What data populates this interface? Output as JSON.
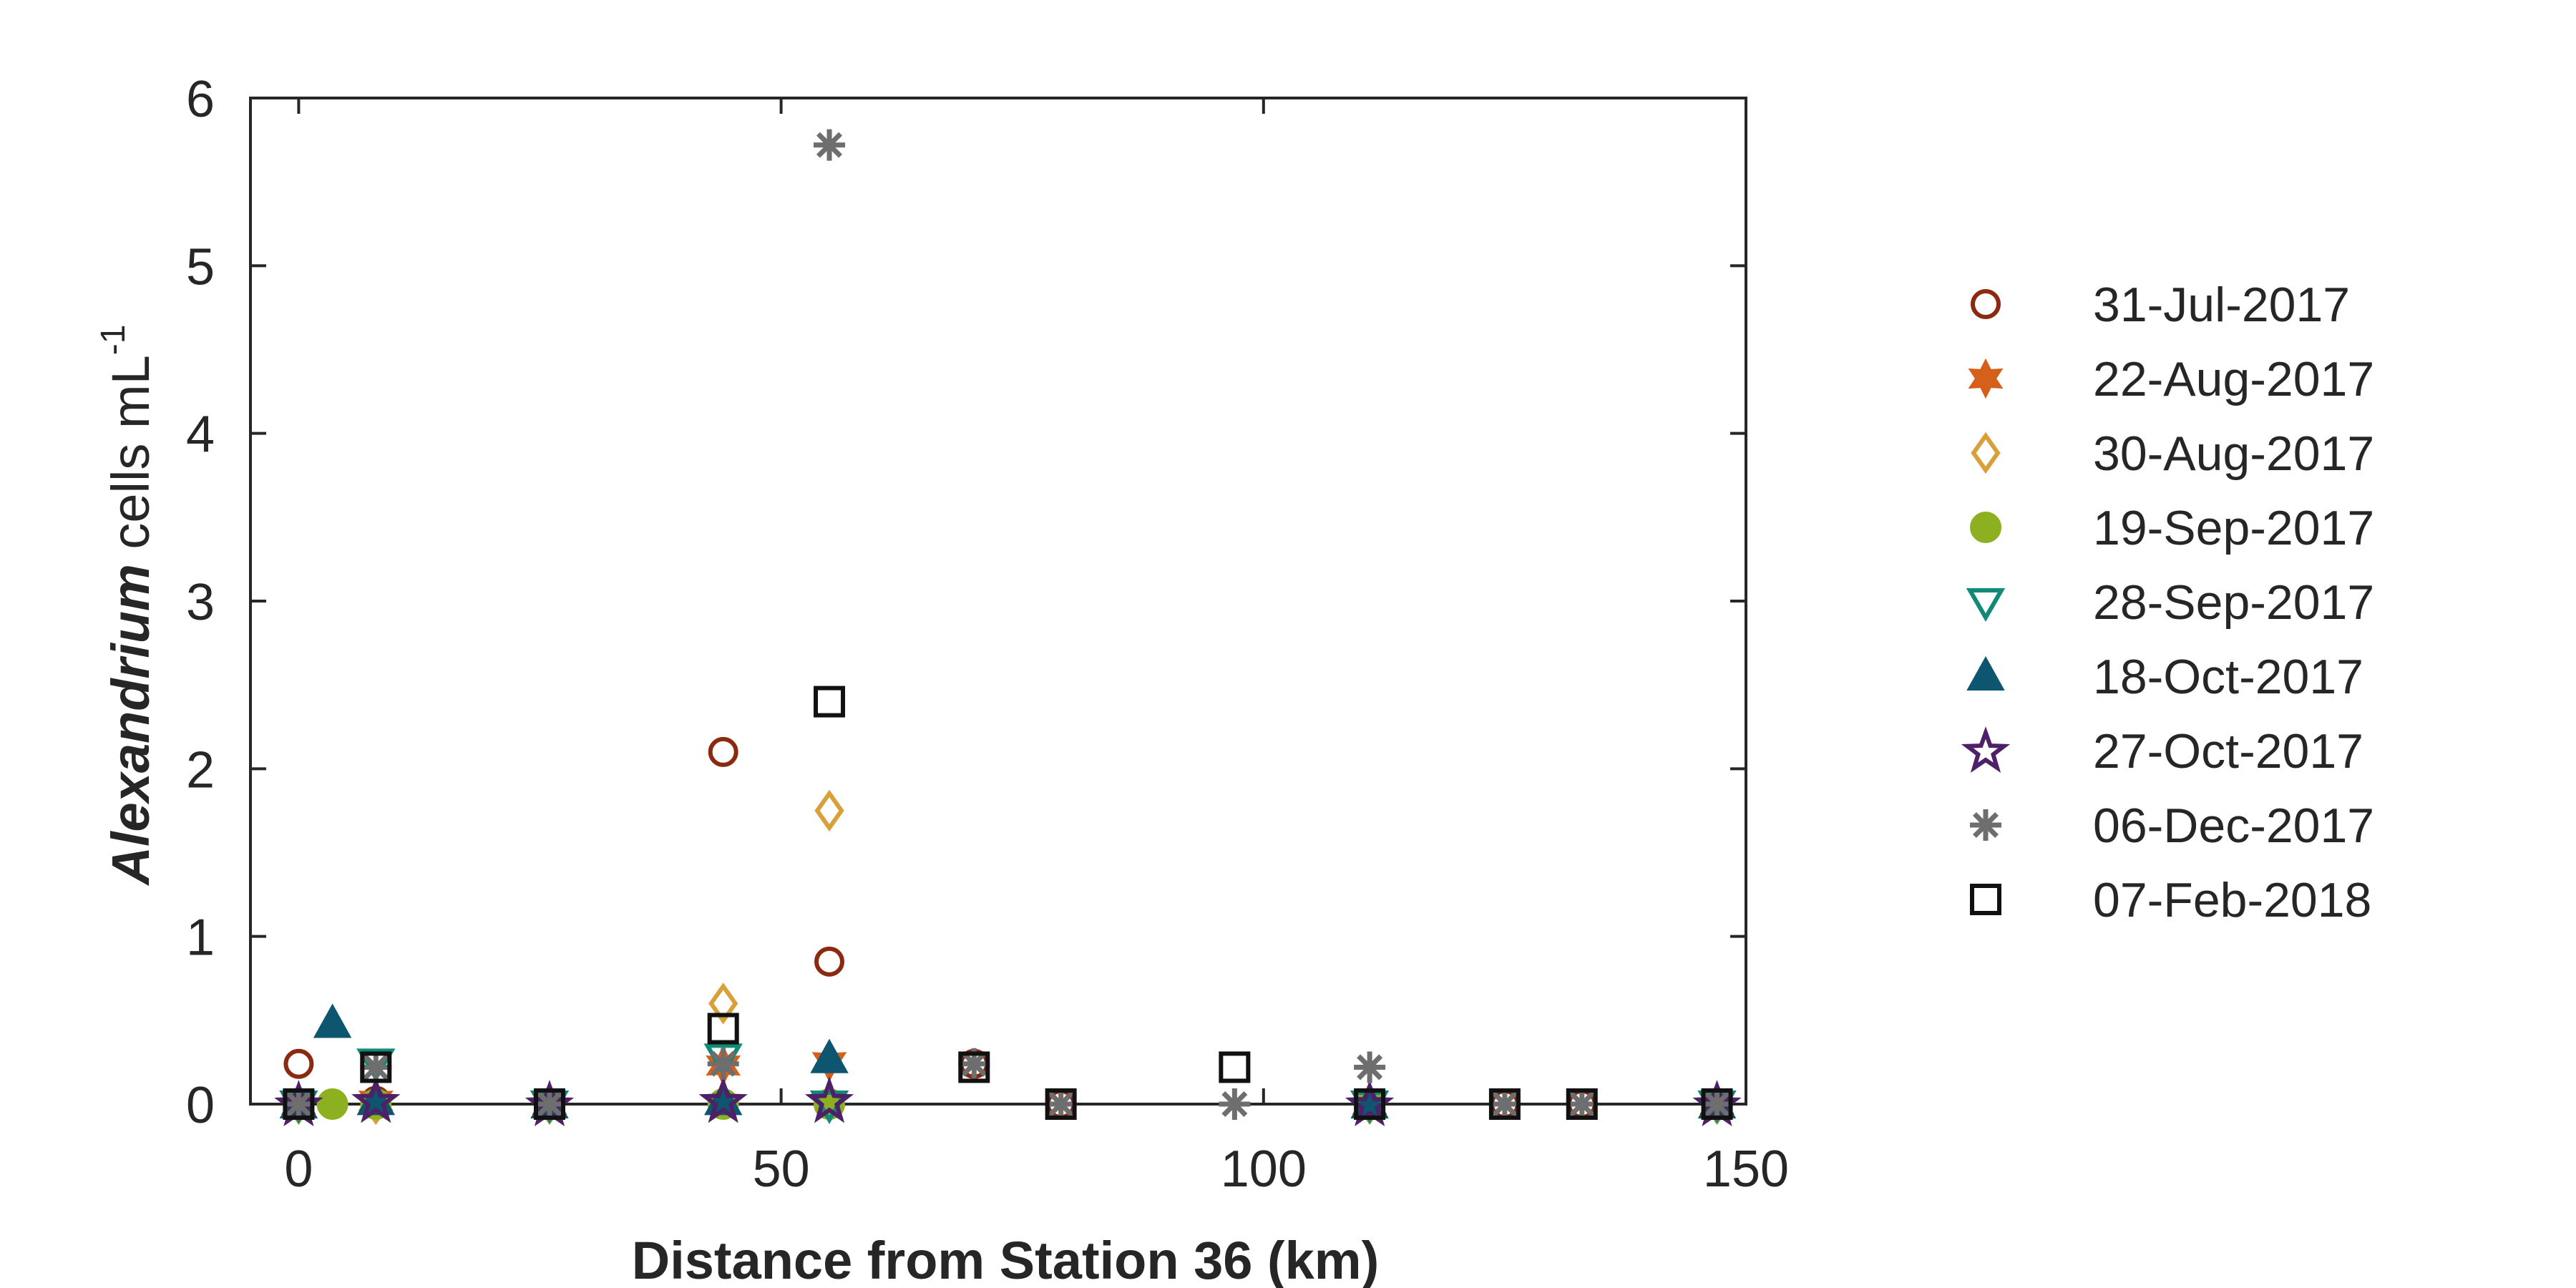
{
  "chart_data": {
    "type": "scatter",
    "xlabel": "Distance from Station 36 (km)",
    "ylabel": {
      "italic_part": "Alexandrium",
      "plain_part": " cells mL",
      "superscript": "-1"
    },
    "xlim": [
      -5,
      150
    ],
    "ylim": [
      0,
      6
    ],
    "x_ticks": [
      0,
      50,
      100,
      150
    ],
    "y_ticks": [
      0,
      1,
      2,
      3,
      4,
      5,
      6
    ],
    "grid": false,
    "legend_position": "right",
    "series": [
      {
        "name": "31-Jul-2017",
        "marker": "circle-open",
        "color": "#8B2A10",
        "x": [
          0,
          44,
          55,
          8,
          26,
          70,
          79,
          111,
          125,
          133,
          147
        ],
        "y": [
          0.24,
          2.1,
          0.85,
          0.02,
          0,
          0.24,
          0,
          0,
          0,
          0,
          0
        ]
      },
      {
        "name": "22-Aug-2017",
        "marker": "hexagram-filled",
        "color": "#D5601A",
        "x": [
          0,
          8,
          26,
          44,
          55,
          111,
          147
        ],
        "y": [
          0,
          0.02,
          0,
          0.23,
          0.25,
          0,
          0
        ]
      },
      {
        "name": "30-Aug-2017",
        "marker": "diamond-open",
        "color": "#D9A03A",
        "x": [
          0,
          8,
          26,
          44,
          55,
          111,
          147
        ],
        "y": [
          0,
          0,
          0,
          0.6,
          1.75,
          0,
          0
        ]
      },
      {
        "name": "19-Sep-2017",
        "marker": "circle-filled",
        "color": "#8DB020",
        "x": [
          0,
          3.5,
          8,
          26,
          44,
          55,
          111,
          147
        ],
        "y": [
          0,
          0,
          0,
          0,
          0,
          0,
          0,
          0
        ]
      },
      {
        "name": "28-Sep-2017",
        "marker": "triangle-down-open",
        "color": "#128A78",
        "x": [
          0,
          8,
          26,
          44,
          55,
          111,
          147
        ],
        "y": [
          0,
          0.25,
          0,
          0.28,
          0,
          0,
          0
        ]
      },
      {
        "name": "18-Oct-2017",
        "marker": "triangle-up-filled",
        "color": "#0E5570",
        "x": [
          0,
          3.5,
          8,
          26,
          44,
          55,
          111,
          147
        ],
        "y": [
          0,
          0.48,
          0.02,
          0,
          0.02,
          0.27,
          0,
          0
        ]
      },
      {
        "name": "27-Oct-2017",
        "marker": "pentagram-open",
        "color": "#4E2068",
        "x": [
          0,
          8,
          26,
          44,
          55,
          111,
          147
        ],
        "y": [
          0,
          0.02,
          0,
          0.02,
          0.02,
          0,
          0
        ]
      },
      {
        "name": "06-Dec-2017",
        "marker": "asterisk",
        "color": "#6E6E6E",
        "x": [
          0,
          8,
          26,
          44,
          55,
          70,
          79,
          97,
          111,
          125,
          133,
          147
        ],
        "y": [
          0,
          0.22,
          0,
          0.24,
          5.72,
          0.24,
          0,
          0,
          0.22,
          0,
          0,
          0
        ]
      },
      {
        "name": "07-Feb-2018",
        "marker": "square-open",
        "color": "#111111",
        "x": [
          0,
          8,
          26,
          44,
          55,
          70,
          79,
          97,
          111,
          125,
          133,
          147
        ],
        "y": [
          0,
          0.22,
          0,
          0.45,
          2.4,
          0.22,
          0,
          0.22,
          0,
          0,
          0,
          0
        ]
      }
    ]
  }
}
